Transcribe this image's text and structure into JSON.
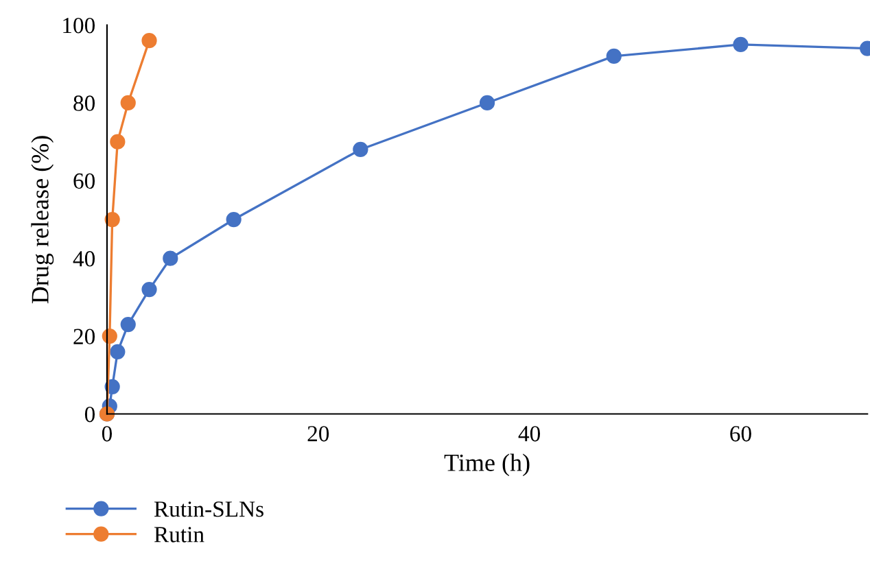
{
  "chart_data": {
    "type": "line",
    "xlabel": "Time (h)",
    "ylabel": "Drug release (%)",
    "xlim": [
      0,
      72
    ],
    "xticks": [
      0,
      20,
      40,
      60
    ],
    "ylim": [
      0,
      100
    ],
    "yticks": [
      0,
      20,
      40,
      60,
      80,
      100
    ],
    "grid": false,
    "legend": "bottom left",
    "marker": "circle",
    "line_style": "solid",
    "series": [
      {
        "name": "Rutin-SLNs",
        "color": "#4472c4",
        "x": [
          0,
          0.25,
          0.5,
          1,
          2,
          4,
          6,
          12,
          24,
          36,
          48,
          60,
          72
        ],
        "values": [
          0,
          2,
          7,
          16,
          23,
          32,
          40,
          50,
          68,
          80,
          92,
          95,
          94
        ]
      },
      {
        "name": "Rutin",
        "color": "#ed7d31",
        "x": [
          0,
          0.25,
          0.5,
          1,
          2,
          4
        ],
        "values": [
          0,
          20,
          50,
          70,
          80,
          96
        ]
      }
    ]
  }
}
